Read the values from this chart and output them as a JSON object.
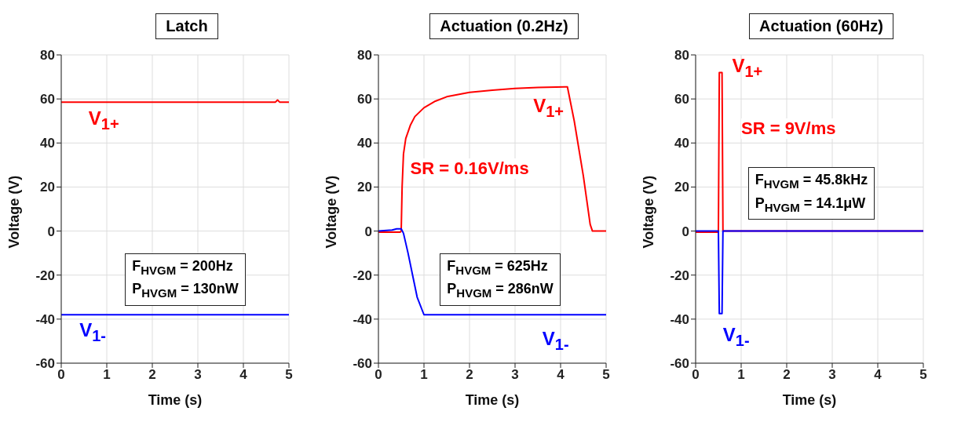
{
  "chart_data": [
    {
      "type": "line",
      "title": "Latch",
      "xlabel": "Time (s)",
      "ylabel": "Voltage (V)",
      "xlim": [
        0,
        5
      ],
      "ylim": [
        -60,
        80
      ],
      "xticks": [
        0,
        1,
        2,
        3,
        4,
        5
      ],
      "yticks": [
        -60,
        -40,
        -20,
        0,
        20,
        40,
        60,
        80
      ],
      "grid": true,
      "marker": "none",
      "line_style": "solid",
      "annotations": [
        "F$_{HVGM}$ = 200Hz",
        "P$_{HVGM}$ = 130nW"
      ],
      "series": [
        {
          "name": "V$_{1+}$",
          "color": "#ff0000",
          "x": [
            0,
            4.7,
            4.75,
            4.8,
            5
          ],
          "values": [
            58.5,
            58.5,
            59.5,
            58.5,
            58.5
          ]
        },
        {
          "name": "V$_{1-}$",
          "color": "#0000ff",
          "x": [
            0,
            5
          ],
          "values": [
            -38,
            -38
          ]
        }
      ]
    },
    {
      "type": "line",
      "title": "Actuation (0.2Hz)",
      "xlabel": "Time (s)",
      "ylabel": "Voltage (V)",
      "xlim": [
        0,
        5
      ],
      "ylim": [
        -60,
        80
      ],
      "xticks": [
        0,
        1,
        2,
        3,
        4,
        5
      ],
      "yticks": [
        -60,
        -40,
        -20,
        0,
        20,
        40,
        60,
        80
      ],
      "grid": true,
      "marker": "none",
      "line_style": "solid",
      "annotations": [
        "SR = 0.16V/ms",
        "F$_{HVGM}$ = 625Hz",
        "P$_{HVGM}$ = 286nW"
      ],
      "series": [
        {
          "name": "V$_{1+}$",
          "color": "#ff0000",
          "x": [
            0,
            0.48,
            0.5,
            0.52,
            0.55,
            0.6,
            0.7,
            0.8,
            1,
            1.25,
            1.5,
            2,
            2.5,
            3,
            3.5,
            4.1,
            4.15,
            4.3,
            4.5,
            4.65,
            4.7,
            5
          ],
          "values": [
            -0.5,
            -0.5,
            0,
            20,
            35,
            42,
            48,
            52,
            56,
            59,
            61,
            63,
            64,
            64.8,
            65.2,
            65.5,
            65.5,
            50,
            25,
            3,
            0,
            0
          ]
        },
        {
          "name": "V$_{1-}$",
          "color": "#0000ff",
          "x": [
            0,
            0.3,
            0.4,
            0.5,
            0.55,
            0.65,
            0.75,
            0.85,
            1,
            5
          ],
          "values": [
            0,
            0.5,
            1,
            1,
            -1,
            -10,
            -20,
            -30,
            -38,
            -38
          ]
        }
      ]
    },
    {
      "type": "line",
      "title": "Actuation (60Hz)",
      "xlabel": "Time (s)",
      "ylabel": "Voltage (V)",
      "xlim": [
        0,
        5
      ],
      "ylim": [
        -60,
        80
      ],
      "xticks": [
        0,
        1,
        2,
        3,
        4,
        5
      ],
      "yticks": [
        -60,
        -40,
        -20,
        0,
        20,
        40,
        60,
        80
      ],
      "grid": true,
      "marker": "none",
      "line_style": "solid",
      "annotations": [
        "SR = 9V/ms",
        "F$_{HVGM}$ = 45.8kHz",
        "P$_{HVGM}$ = 14.1μW"
      ],
      "series": [
        {
          "name": "V$_{1+}$",
          "color": "#ff0000",
          "x": [
            0,
            0.5,
            0.52,
            0.58,
            0.6,
            5
          ],
          "values": [
            -0.5,
            -0.5,
            72,
            72,
            0,
            0
          ]
        },
        {
          "name": "V$_{1-}$",
          "color": "#0000ff",
          "x": [
            0,
            0.5,
            0.52,
            0.58,
            0.6,
            5
          ],
          "values": [
            0,
            0,
            -37.5,
            -37.5,
            0,
            0
          ]
        }
      ]
    }
  ]
}
